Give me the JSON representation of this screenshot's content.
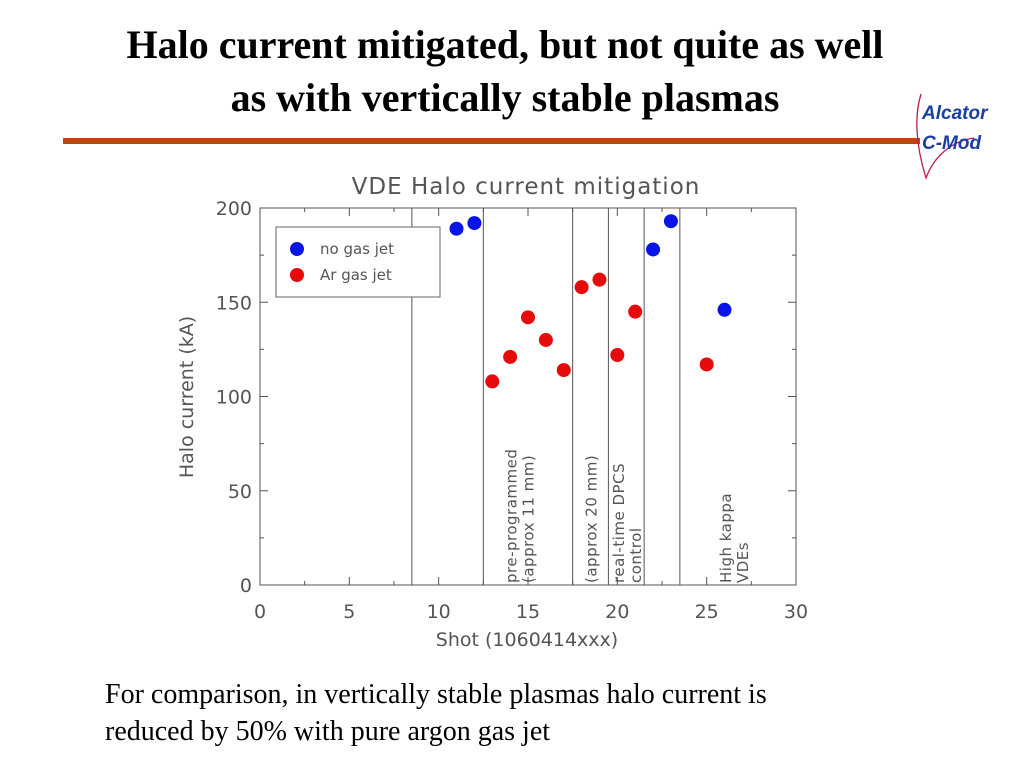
{
  "slide": {
    "title_line1": "Halo current mitigated, but not quite as well",
    "title_line2": "as with vertically stable plasmas",
    "caption_line1": "For comparison, in vertically stable plasmas halo current is",
    "caption_line2": "reduced by 50% with pure argon gas jet"
  },
  "logo": {
    "line1": "Alcator",
    "line2": "C-Mod"
  },
  "colors": {
    "accent": "#c8400c",
    "logo": "#1a3fa0",
    "logo_swoosh": "#c2185b",
    "no_gas": "#0a14e6",
    "ar_gas": "#e60a0a"
  },
  "chart_data": {
    "type": "scatter",
    "title": "VDE Halo current mitigation",
    "xlabel": "Shot (1060414xxx)",
    "ylabel": "Halo current (kA)",
    "xlim": [
      0,
      30
    ],
    "ylim": [
      0,
      200
    ],
    "x_ticks": [
      "0",
      "5",
      "10",
      "15",
      "20",
      "25",
      "30"
    ],
    "y_ticks": [
      "0",
      "50",
      "100",
      "150",
      "200"
    ],
    "legend_position": "top-left",
    "series": [
      {
        "name": "no gas jet",
        "color": "#0a14e6",
        "points": [
          [
            11,
            189
          ],
          [
            12,
            192
          ],
          [
            22,
            178
          ],
          [
            23,
            193
          ],
          [
            26,
            146
          ]
        ]
      },
      {
        "name": "Ar gas jet",
        "color": "#e60a0a",
        "points": [
          [
            13,
            108
          ],
          [
            14,
            121
          ],
          [
            15,
            142
          ],
          [
            16,
            130
          ],
          [
            17,
            114
          ],
          [
            18,
            158
          ],
          [
            19,
            162
          ],
          [
            20,
            122
          ],
          [
            21,
            145
          ],
          [
            25,
            117
          ]
        ]
      }
    ],
    "vlines": [
      8.5,
      12.5,
      17.5,
      19.5,
      21.5,
      23.5
    ],
    "annotations": [
      {
        "x": 14.5,
        "lines": [
          "pre-programmed",
          "(approx 11 mm)"
        ]
      },
      {
        "x": 18.5,
        "lines": [
          "(approx 20 mm)"
        ]
      },
      {
        "x": 20.5,
        "lines": [
          "real-time DPCS",
          "control"
        ]
      },
      {
        "x": 26.5,
        "lines": [
          "High kappa",
          "VDEs"
        ]
      }
    ]
  }
}
